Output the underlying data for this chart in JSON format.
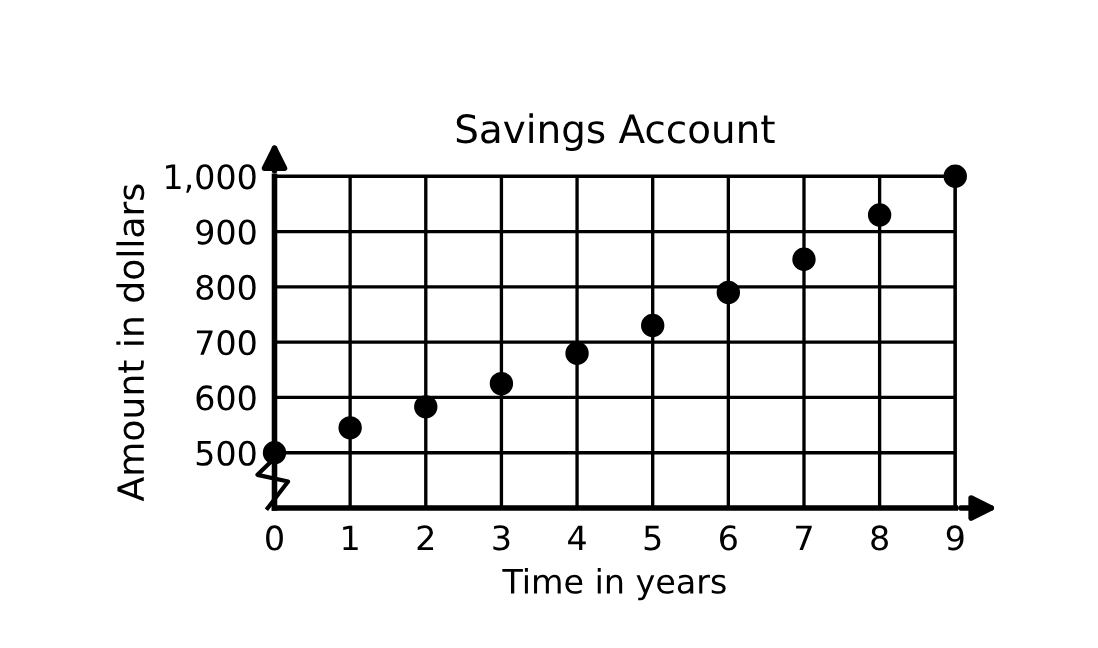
{
  "chart_data": {
    "type": "scatter",
    "title": "Savings Account",
    "xlabel": "Time in years",
    "ylabel": "Amount in dollars",
    "x": [
      0,
      1,
      2,
      3,
      4,
      5,
      6,
      7,
      8,
      9
    ],
    "series": [
      {
        "color": "#000000",
        "values": [
          500,
          545,
          583,
          625,
          680,
          730,
          790,
          850,
          930,
          1000
        ]
      }
    ],
    "xlim": [
      0,
      9
    ],
    "ylim": [
      400,
      1000
    ],
    "xticks": [
      0,
      1,
      2,
      3,
      4,
      5,
      6,
      7,
      8,
      9
    ],
    "yticks": [
      {
        "value": 400,
        "label": null
      },
      500,
      600,
      700,
      800,
      900,
      {
        "value": 1000,
        "label": "1,000"
      }
    ],
    "grid": true,
    "marker": "circle"
  }
}
